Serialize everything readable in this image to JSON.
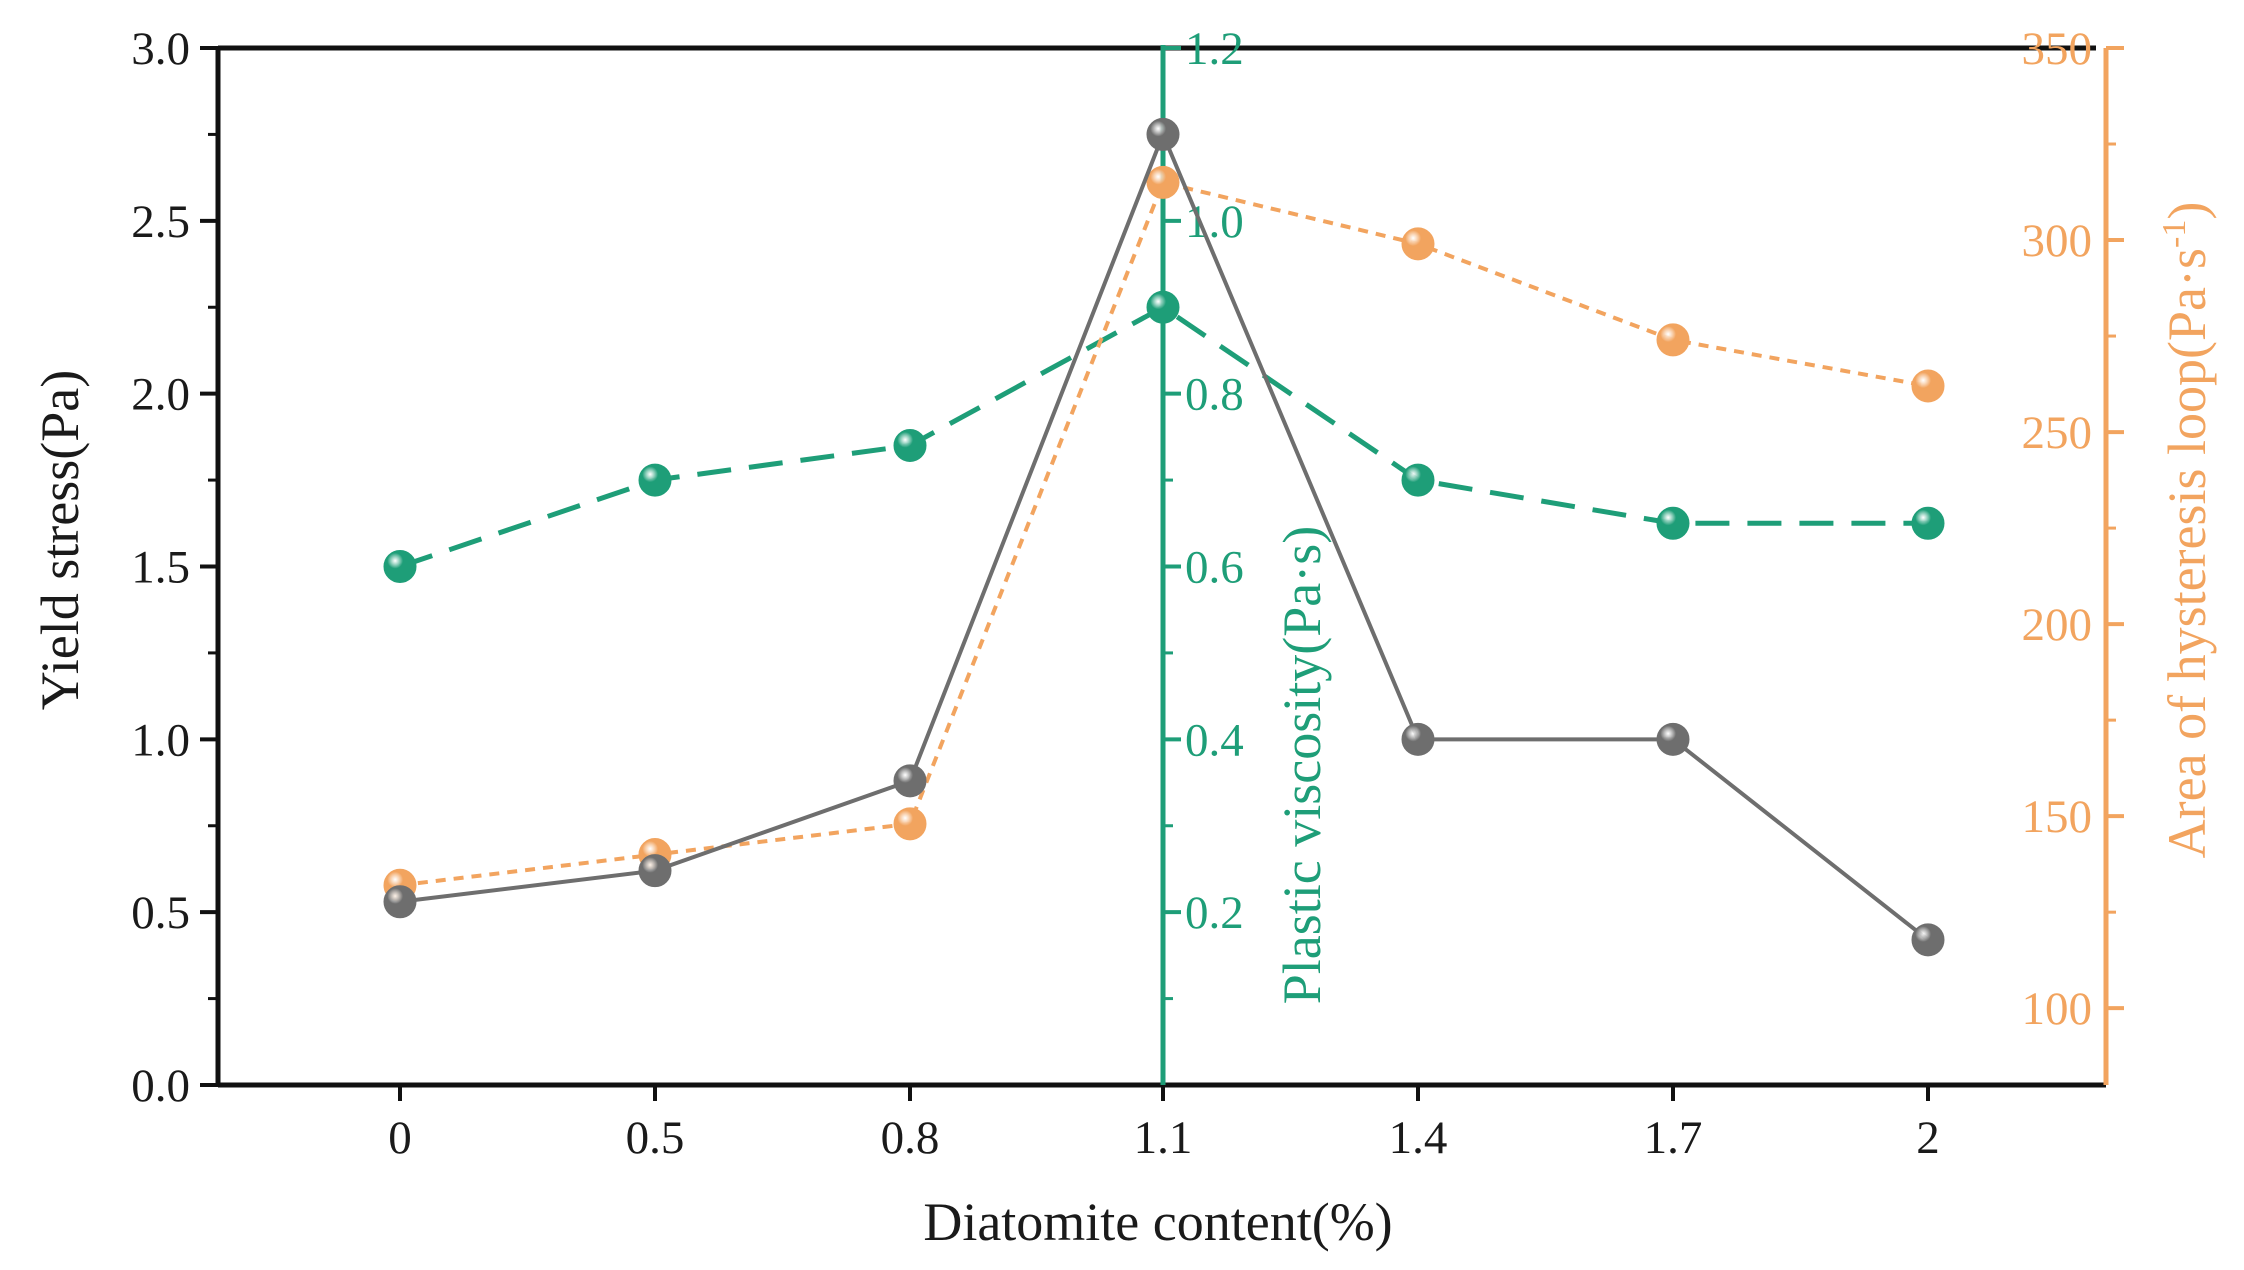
{
  "chart_data": {
    "type": "line",
    "categories": [
      "0",
      "0.5",
      "0.8",
      "1.1",
      "1.4",
      "1.7",
      "2"
    ],
    "xlabel": "Diatomite content(%)",
    "axes": {
      "left": {
        "label": "Yield stress(Pa)",
        "ylim": [
          0,
          3
        ],
        "ticks": [
          "0.0",
          "0.5",
          "1.0",
          "1.5",
          "2.0",
          "2.5",
          "3.0"
        ],
        "color": "#1a1a1a"
      },
      "middle": {
        "label": "Plastic viscosity(Pa·s)",
        "ylim": [
          0,
          1.2
        ],
        "ticks": [
          "0.2",
          "0.4",
          "0.6",
          "0.8",
          "1.0",
          "1.2"
        ],
        "color": "#1e9e78"
      },
      "right": {
        "label_main": "Area of hysteresis loop(Pa·s",
        "label_sup": "-1",
        "label_end": ")",
        "ylim": [
          80,
          350
        ],
        "ticks": [
          "100",
          "150",
          "200",
          "250",
          "300",
          "350"
        ],
        "color": "#f2a45f"
      }
    },
    "series": [
      {
        "axis": "left",
        "color": "#6e6e6e",
        "style": "solid",
        "values": [
          0.53,
          0.62,
          0.88,
          2.75,
          1.0,
          1.0,
          0.42
        ]
      },
      {
        "axis": "middle",
        "color": "#1e9e78",
        "style": "dashed",
        "values": [
          0.6,
          0.7,
          0.74,
          0.9,
          0.7,
          0.65,
          0.65
        ]
      },
      {
        "axis": "right",
        "color": "#f2a45f",
        "style": "dotted",
        "values": [
          132,
          140,
          148,
          315,
          299,
          274,
          262
        ]
      }
    ],
    "grid": false,
    "legend": "none"
  }
}
